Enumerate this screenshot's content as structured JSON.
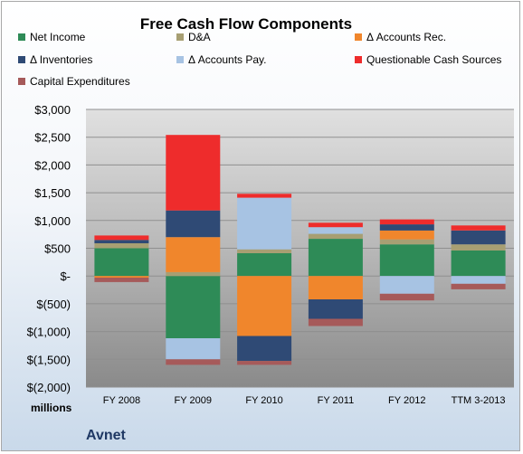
{
  "chart_data": {
    "type": "bar",
    "stacked": true,
    "title": "Free Cash Flow Components",
    "units_label": "millions",
    "company": "Avnet",
    "categories": [
      "FY 2008",
      "FY 2009",
      "FY 2010",
      "FY 2011",
      "FY 2012",
      "TTM 3-2013"
    ],
    "ylim": [
      -2000,
      3000
    ],
    "y_ticks": [
      3000,
      2500,
      2000,
      1500,
      1000,
      500,
      0,
      -500,
      -1000,
      -1500,
      -2000
    ],
    "y_tick_labels": [
      "$3,000",
      "$2,500",
      "$2,000",
      "$1,500",
      "$1,000",
      "$500",
      "$-",
      "$(500)",
      "$(1,000)",
      "$(1,500)",
      "$(2,000)"
    ],
    "grid": true,
    "legend_position": "top",
    "series": [
      {
        "name": "Net Income",
        "color": "#2e8b57",
        "values": [
          500,
          -1120,
          410,
          670,
          570,
          460
        ]
      },
      {
        "name": "D&A",
        "color": "#a79f73",
        "values": [
          90,
          70,
          70,
          90,
          90,
          110
        ]
      },
      {
        "name": "Δ Accounts Rec.",
        "color": "#f0862c",
        "values": [
          -30,
          630,
          -1080,
          -420,
          160,
          0
        ]
      },
      {
        "name": "Δ Inventories",
        "color": "#2f4a75",
        "values": [
          60,
          480,
          -450,
          -350,
          110,
          250
        ]
      },
      {
        "name": "Δ Accounts Pay.",
        "color": "#a7c3e3",
        "values": [
          0,
          -380,
          930,
          120,
          -320,
          -140
        ]
      },
      {
        "name": "Questionable Cash Sources",
        "color": "#ee2c2c",
        "values": [
          80,
          1360,
          70,
          80,
          90,
          90
        ]
      },
      {
        "name": "Capital Expenditures",
        "color": "#a65a5a",
        "values": [
          -80,
          -100,
          -70,
          -130,
          -120,
          -100
        ]
      }
    ]
  }
}
